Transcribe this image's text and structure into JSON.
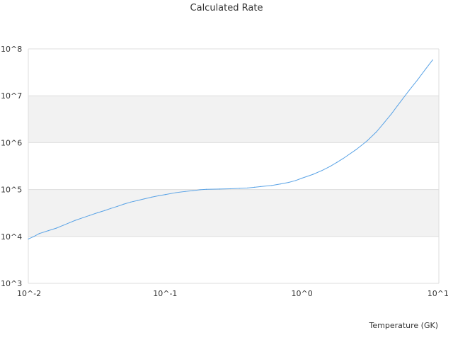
{
  "chart_data": {
    "type": "line",
    "title": "Calculated Rate",
    "xlabel": "Temperature (GK)",
    "ylabel": "",
    "x_scale": "log",
    "y_scale": "log",
    "xlim": [
      0.01,
      10
    ],
    "ylim": [
      1000,
      100000000
    ],
    "x_ticks": [
      "10^-2",
      "10^-1",
      "10^0",
      "10^1"
    ],
    "y_ticks": [
      "10^3",
      "10^4",
      "10^5",
      "10^6",
      "10^7",
      "10^8"
    ],
    "grid": true,
    "alternating_bands": true,
    "colors": {
      "line": "#5aa3e6",
      "band": "#f2f2f2",
      "grid": "#dddddd"
    },
    "series": [
      {
        "x": [
          0.01,
          0.011,
          0.012,
          0.014,
          0.016,
          0.018,
          0.02,
          0.022,
          0.025,
          0.028,
          0.032,
          0.036,
          0.04,
          0.045,
          0.05,
          0.056,
          0.063,
          0.07,
          0.08,
          0.09,
          0.1,
          0.12,
          0.14,
          0.16,
          0.18,
          0.2,
          0.25,
          0.3,
          0.35,
          0.4,
          0.45,
          0.5,
          0.6,
          0.7,
          0.8,
          0.9,
          1.0,
          1.2,
          1.4,
          1.6,
          1.8,
          2.0,
          2.5,
          3.0,
          3.5,
          4.0,
          4.5,
          5.0,
          6.0,
          7.0,
          8.0,
          9.0
        ],
        "y": [
          8800,
          10000,
          11500,
          13300,
          15000,
          17300,
          19600,
          22000,
          25000,
          28000,
          32000,
          35500,
          39500,
          44000,
          49000,
          54000,
          58500,
          63000,
          69000,
          74000,
          78000,
          86000,
          91000,
          95000,
          99000,
          101000,
          102500,
          104000,
          106000,
          108000,
          112000,
          116000,
          122000,
          132000,
          142000,
          156000,
          175000,
          210000,
          255000,
          310000,
          380000,
          460000,
          720000,
          1100000,
          1700000,
          2700000,
          4100000,
          6200000,
          12500000,
          22000000,
          37000000,
          58000000
        ]
      }
    ]
  }
}
